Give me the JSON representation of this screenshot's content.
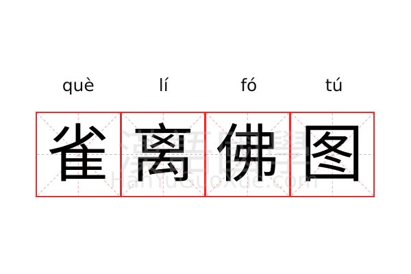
{
  "pinyin": [
    "què",
    "lí",
    "fó",
    "tú"
  ],
  "characters": [
    "雀",
    "离",
    "佛",
    "图"
  ],
  "watermark": {
    "chinese": "漢語國學",
    "latin": "HanYuGuoXue.com"
  },
  "colors": {
    "border": "#ee2a2a",
    "guide": "#f5a0a0",
    "text": "#000000"
  }
}
